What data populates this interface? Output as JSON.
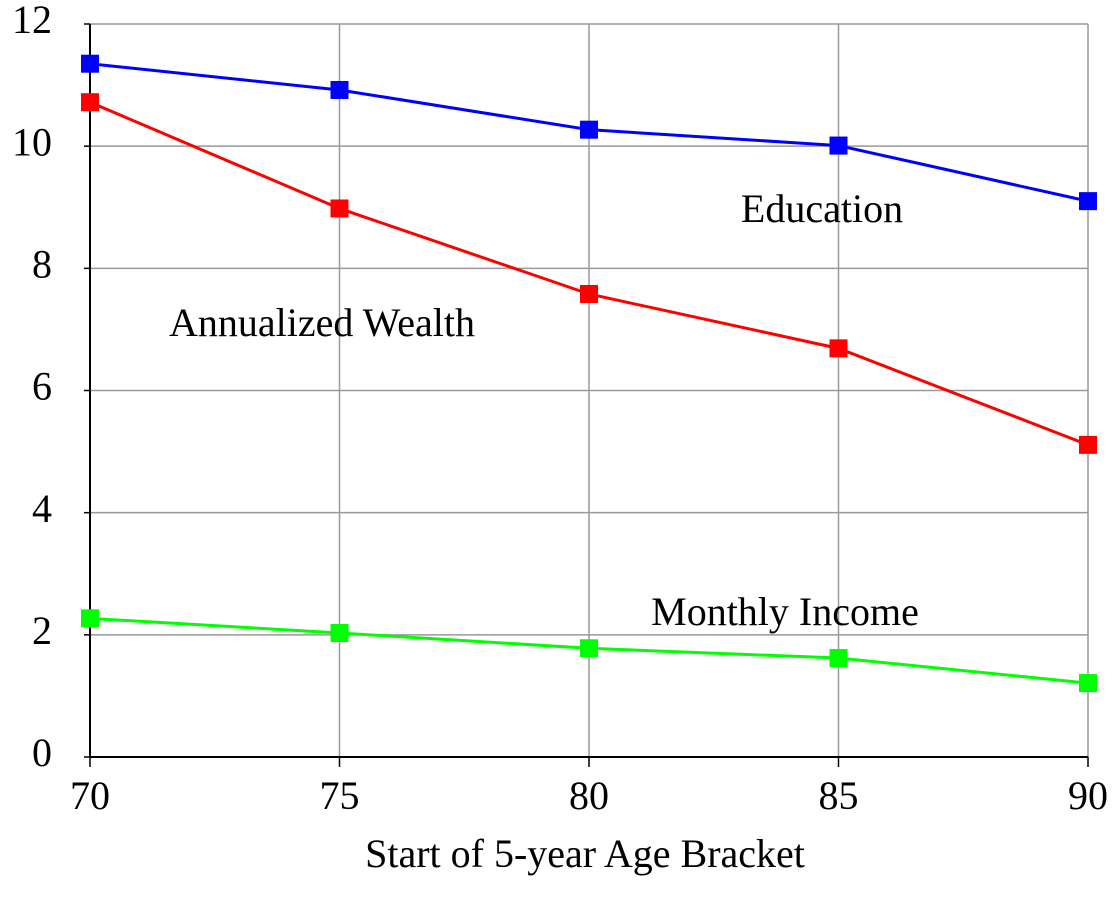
{
  "chart_data": {
    "type": "line",
    "xlabel": "Start of 5-year Age Bracket",
    "x": [
      70,
      75,
      80,
      85,
      90
    ],
    "series": [
      {
        "name": "Education",
        "color": "#0000ff",
        "values": [
          11.35,
          10.92,
          10.27,
          10.01,
          9.1
        ]
      },
      {
        "name": "Annualized Wealth",
        "color": "#ff0000",
        "values": [
          10.72,
          8.98,
          7.58,
          6.69,
          5.11
        ]
      },
      {
        "name": "Monthly Income",
        "color": "#00ff00",
        "values": [
          2.27,
          2.03,
          1.78,
          1.62,
          1.21
        ]
      }
    ],
    "xlim": [
      70,
      90
    ],
    "xticks": [
      70,
      75,
      80,
      85,
      90
    ],
    "ylim": [
      0,
      12
    ],
    "yticks": [
      0,
      2,
      4,
      6,
      8,
      10,
      12
    ],
    "grid": true
  }
}
